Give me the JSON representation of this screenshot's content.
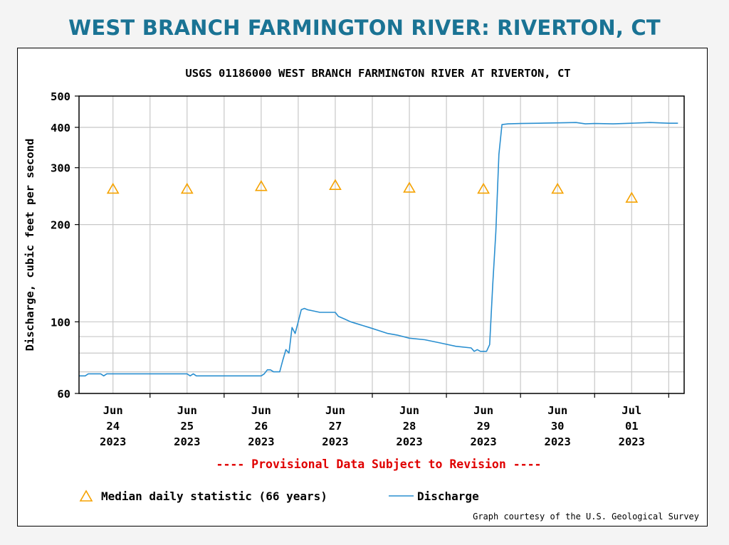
{
  "page": {
    "title": "WEST BRANCH FARMINGTON RIVER: RIVERTON, CT"
  },
  "chart_data": {
    "type": "line",
    "title": "USGS 01186000 WEST BRANCH FARMINGTON RIVER AT RIVERTON, CT",
    "ylabel": "Discharge, cubic feet per second",
    "xlabel": "",
    "yscale": "log",
    "ylim": [
      60,
      500
    ],
    "yticks": [
      60,
      100,
      200,
      300,
      400,
      500
    ],
    "yminor": [
      70,
      80,
      90
    ],
    "xlim": [
      "2023-06-23T13:00",
      "2023-07-01T17:00"
    ],
    "xticks": [
      {
        "line1": "Jun",
        "line2": "24",
        "line3": "2023",
        "x": "2023-06-24T00:00"
      },
      {
        "line1": "Jun",
        "line2": "25",
        "line3": "2023",
        "x": "2023-06-25T00:00"
      },
      {
        "line1": "Jun",
        "line2": "26",
        "line3": "2023",
        "x": "2023-06-26T00:00"
      },
      {
        "line1": "Jun",
        "line2": "27",
        "line3": "2023",
        "x": "2023-06-27T00:00"
      },
      {
        "line1": "Jun",
        "line2": "28",
        "line3": "2023",
        "x": "2023-06-28T00:00"
      },
      {
        "line1": "Jun",
        "line2": "29",
        "line3": "2023",
        "x": "2023-06-29T00:00"
      },
      {
        "line1": "Jun",
        "line2": "30",
        "line3": "2023",
        "x": "2023-06-30T00:00"
      },
      {
        "line1": "Jul",
        "line2": "01",
        "line3": "2023",
        "x": "2023-07-01T00:00"
      }
    ],
    "grid": true,
    "notice": "---- Provisional Data Subject to Revision ----",
    "credit": "Graph courtesy of the U.S. Geological Survey",
    "colors": {
      "discharge": "#2a8fd0",
      "median": "#f5a200",
      "notice": "#e00000",
      "grid": "#c8c8c8"
    },
    "series": [
      {
        "name": "Discharge",
        "kind": "line",
        "points": [
          [
            "2023-06-23T13:00",
            68
          ],
          [
            "2023-06-23T15:00",
            68
          ],
          [
            "2023-06-23T16:00",
            69
          ],
          [
            "2023-06-23T20:00",
            69
          ],
          [
            "2023-06-23T21:00",
            68
          ],
          [
            "2023-06-23T22:00",
            69
          ],
          [
            "2023-06-25T00:00",
            69
          ],
          [
            "2023-06-25T01:00",
            68
          ],
          [
            "2023-06-25T02:00",
            69
          ],
          [
            "2023-06-25T03:00",
            68
          ],
          [
            "2023-06-26T00:00",
            68
          ],
          [
            "2023-06-26T01:00",
            69
          ],
          [
            "2023-06-26T02:00",
            71
          ],
          [
            "2023-06-26T03:00",
            71
          ],
          [
            "2023-06-26T04:00",
            70
          ],
          [
            "2023-06-26T06:00",
            70
          ],
          [
            "2023-06-26T07:00",
            76
          ],
          [
            "2023-06-26T08:00",
            82
          ],
          [
            "2023-06-26T09:00",
            80
          ],
          [
            "2023-06-26T10:00",
            96
          ],
          [
            "2023-06-26T11:00",
            92
          ],
          [
            "2023-06-26T12:00",
            100
          ],
          [
            "2023-06-26T13:00",
            109
          ],
          [
            "2023-06-26T14:00",
            110
          ],
          [
            "2023-06-26T15:00",
            109
          ],
          [
            "2023-06-26T17:00",
            108
          ],
          [
            "2023-06-26T19:00",
            107
          ],
          [
            "2023-06-27T00:00",
            107
          ],
          [
            "2023-06-27T01:00",
            104
          ],
          [
            "2023-06-27T03:00",
            102
          ],
          [
            "2023-06-27T05:00",
            100
          ],
          [
            "2023-06-27T08:00",
            98
          ],
          [
            "2023-06-27T11:00",
            96
          ],
          [
            "2023-06-27T14:00",
            94
          ],
          [
            "2023-06-27T17:00",
            92
          ],
          [
            "2023-06-27T20:00",
            91
          ],
          [
            "2023-06-28T00:00",
            89
          ],
          [
            "2023-06-28T05:00",
            88
          ],
          [
            "2023-06-28T10:00",
            86
          ],
          [
            "2023-06-28T15:00",
            84
          ],
          [
            "2023-06-28T20:00",
            83
          ],
          [
            "2023-06-28T21:00",
            81
          ],
          [
            "2023-06-28T22:00",
            82
          ],
          [
            "2023-06-28T23:00",
            81
          ],
          [
            "2023-06-29T00:00",
            81
          ],
          [
            "2023-06-29T01:00",
            81
          ],
          [
            "2023-06-29T02:00",
            85
          ],
          [
            "2023-06-29T03:00",
            130
          ],
          [
            "2023-06-29T04:00",
            190
          ],
          [
            "2023-06-29T05:00",
            330
          ],
          [
            "2023-06-29T06:00",
            408
          ],
          [
            "2023-06-29T08:00",
            410
          ],
          [
            "2023-06-29T12:00",
            411
          ],
          [
            "2023-06-29T18:00",
            412
          ],
          [
            "2023-06-30T00:00",
            413
          ],
          [
            "2023-06-30T06:00",
            414
          ],
          [
            "2023-06-30T09:00",
            410
          ],
          [
            "2023-06-30T12:00",
            411
          ],
          [
            "2023-06-30T18:00",
            410
          ],
          [
            "2023-07-01T00:00",
            412
          ],
          [
            "2023-07-01T06:00",
            414
          ],
          [
            "2023-07-01T12:00",
            412
          ],
          [
            "2023-07-01T15:00",
            412
          ]
        ]
      },
      {
        "name": "Median daily statistic (66 years)",
        "kind": "marker",
        "points": [
          [
            "2023-06-24T00:00",
            258
          ],
          [
            "2023-06-25T00:00",
            258
          ],
          [
            "2023-06-26T00:00",
            263
          ],
          [
            "2023-06-27T00:00",
            265
          ],
          [
            "2023-06-28T00:00",
            260
          ],
          [
            "2023-06-29T00:00",
            258
          ],
          [
            "2023-06-30T00:00",
            258
          ],
          [
            "2023-07-01T00:00",
            242
          ]
        ]
      }
    ],
    "legend": {
      "placement": "bottom-left",
      "median_label": "Median daily statistic (66 years)",
      "discharge_label": "Discharge"
    }
  }
}
